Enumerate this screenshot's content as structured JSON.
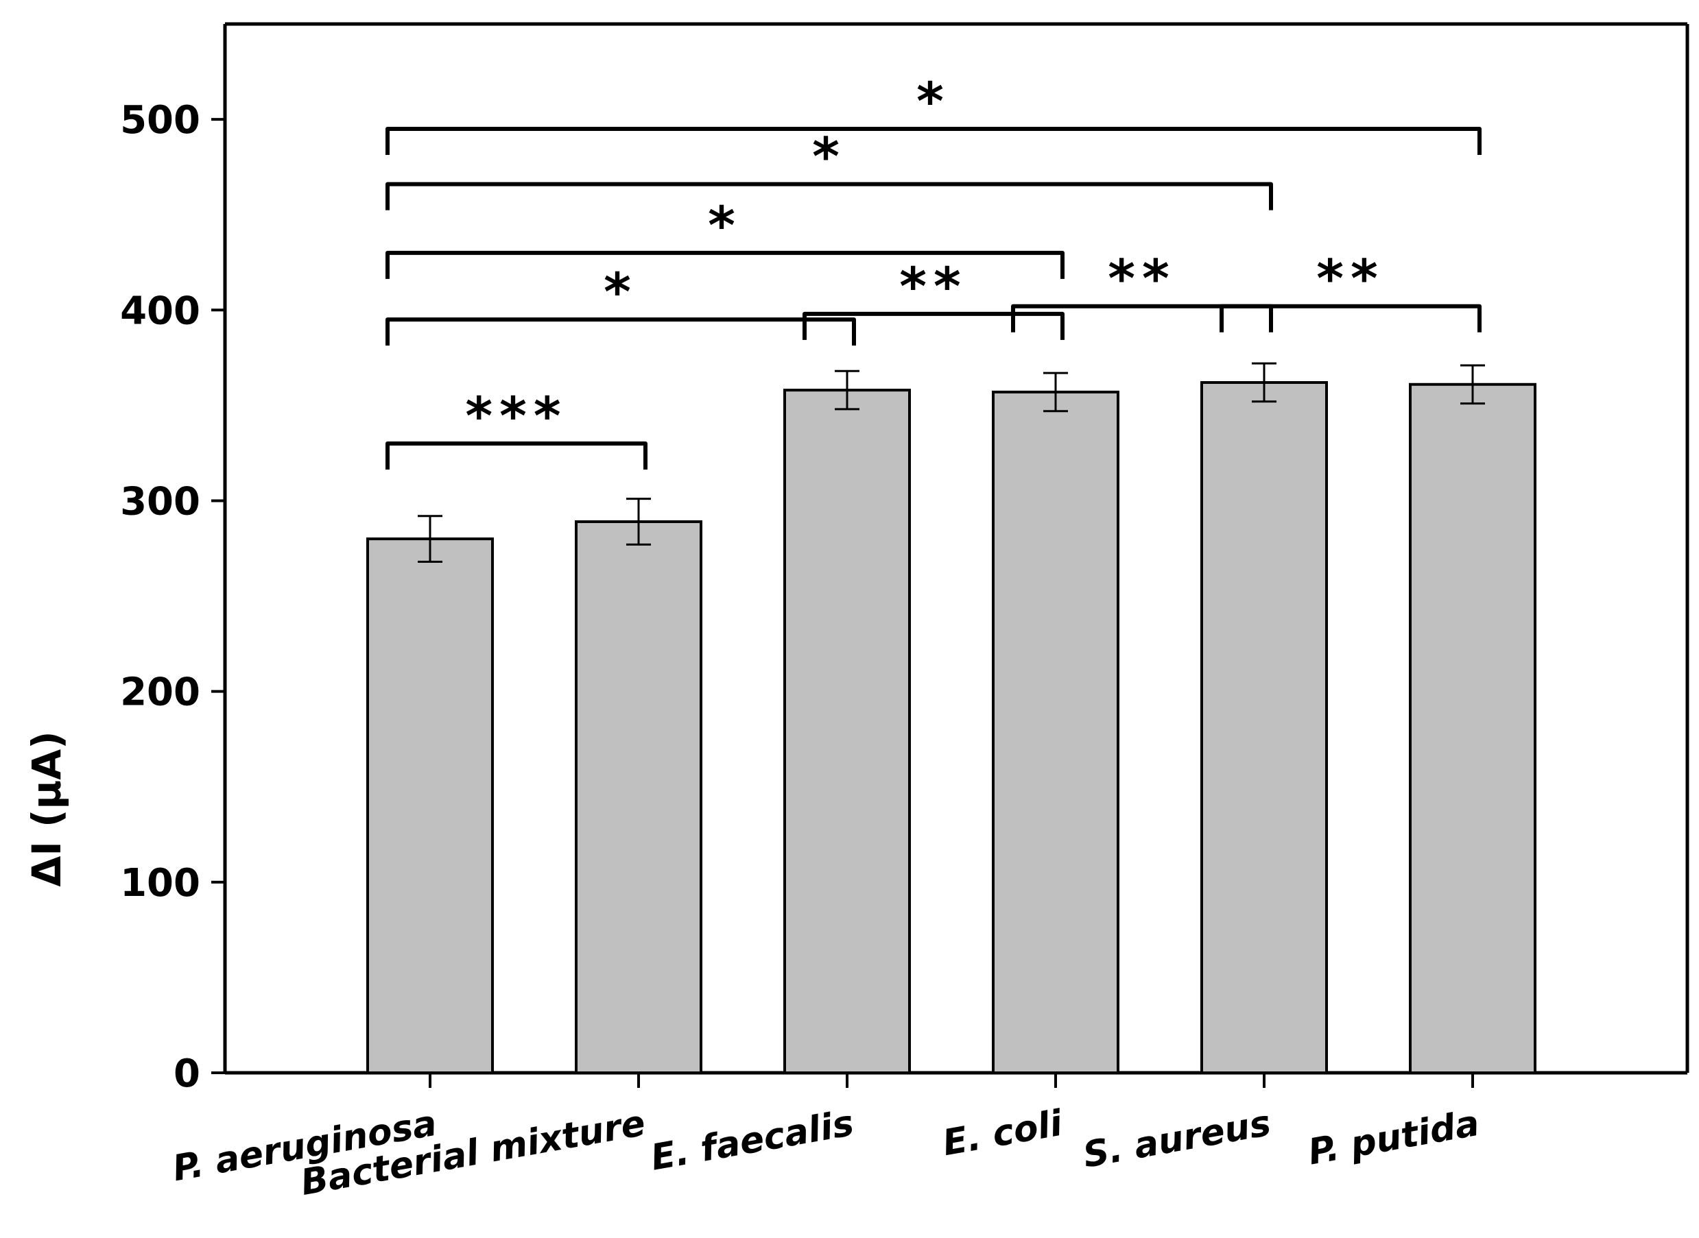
{
  "chart_data": {
    "type": "bar",
    "title": "",
    "xlabel": "",
    "ylabel": "ΔI (µA)",
    "ylim": [
      0,
      550
    ],
    "yticks": [
      0,
      100,
      200,
      300,
      400,
      500
    ],
    "grid": false,
    "categories": [
      "P. aeruginosa",
      "Bacterial mixture",
      "E. faecalis",
      "E. coli",
      "S. aureus",
      "P. putida"
    ],
    "values": [
      280,
      289,
      358,
      357,
      362,
      361
    ],
    "errors": [
      12,
      12,
      10,
      10,
      10,
      10
    ],
    "bar_color": "#c0c0c0",
    "significance": [
      {
        "from": 0,
        "to": 5,
        "label": "*",
        "level": 495
      },
      {
        "from": 0,
        "to": 4,
        "label": "*",
        "level": 466
      },
      {
        "from": 0,
        "to": 3,
        "label": "*",
        "level": 430
      },
      {
        "from": 0,
        "to": 2,
        "label": "*",
        "level": 395
      },
      {
        "from": 2,
        "to": 3,
        "label": "**",
        "level": 398
      },
      {
        "from": 3,
        "to": 4,
        "label": "**",
        "level": 402
      },
      {
        "from": 4,
        "to": 5,
        "label": "**",
        "level": 402
      },
      {
        "from": 0,
        "to": 1,
        "label": "***",
        "level": 330
      }
    ]
  }
}
